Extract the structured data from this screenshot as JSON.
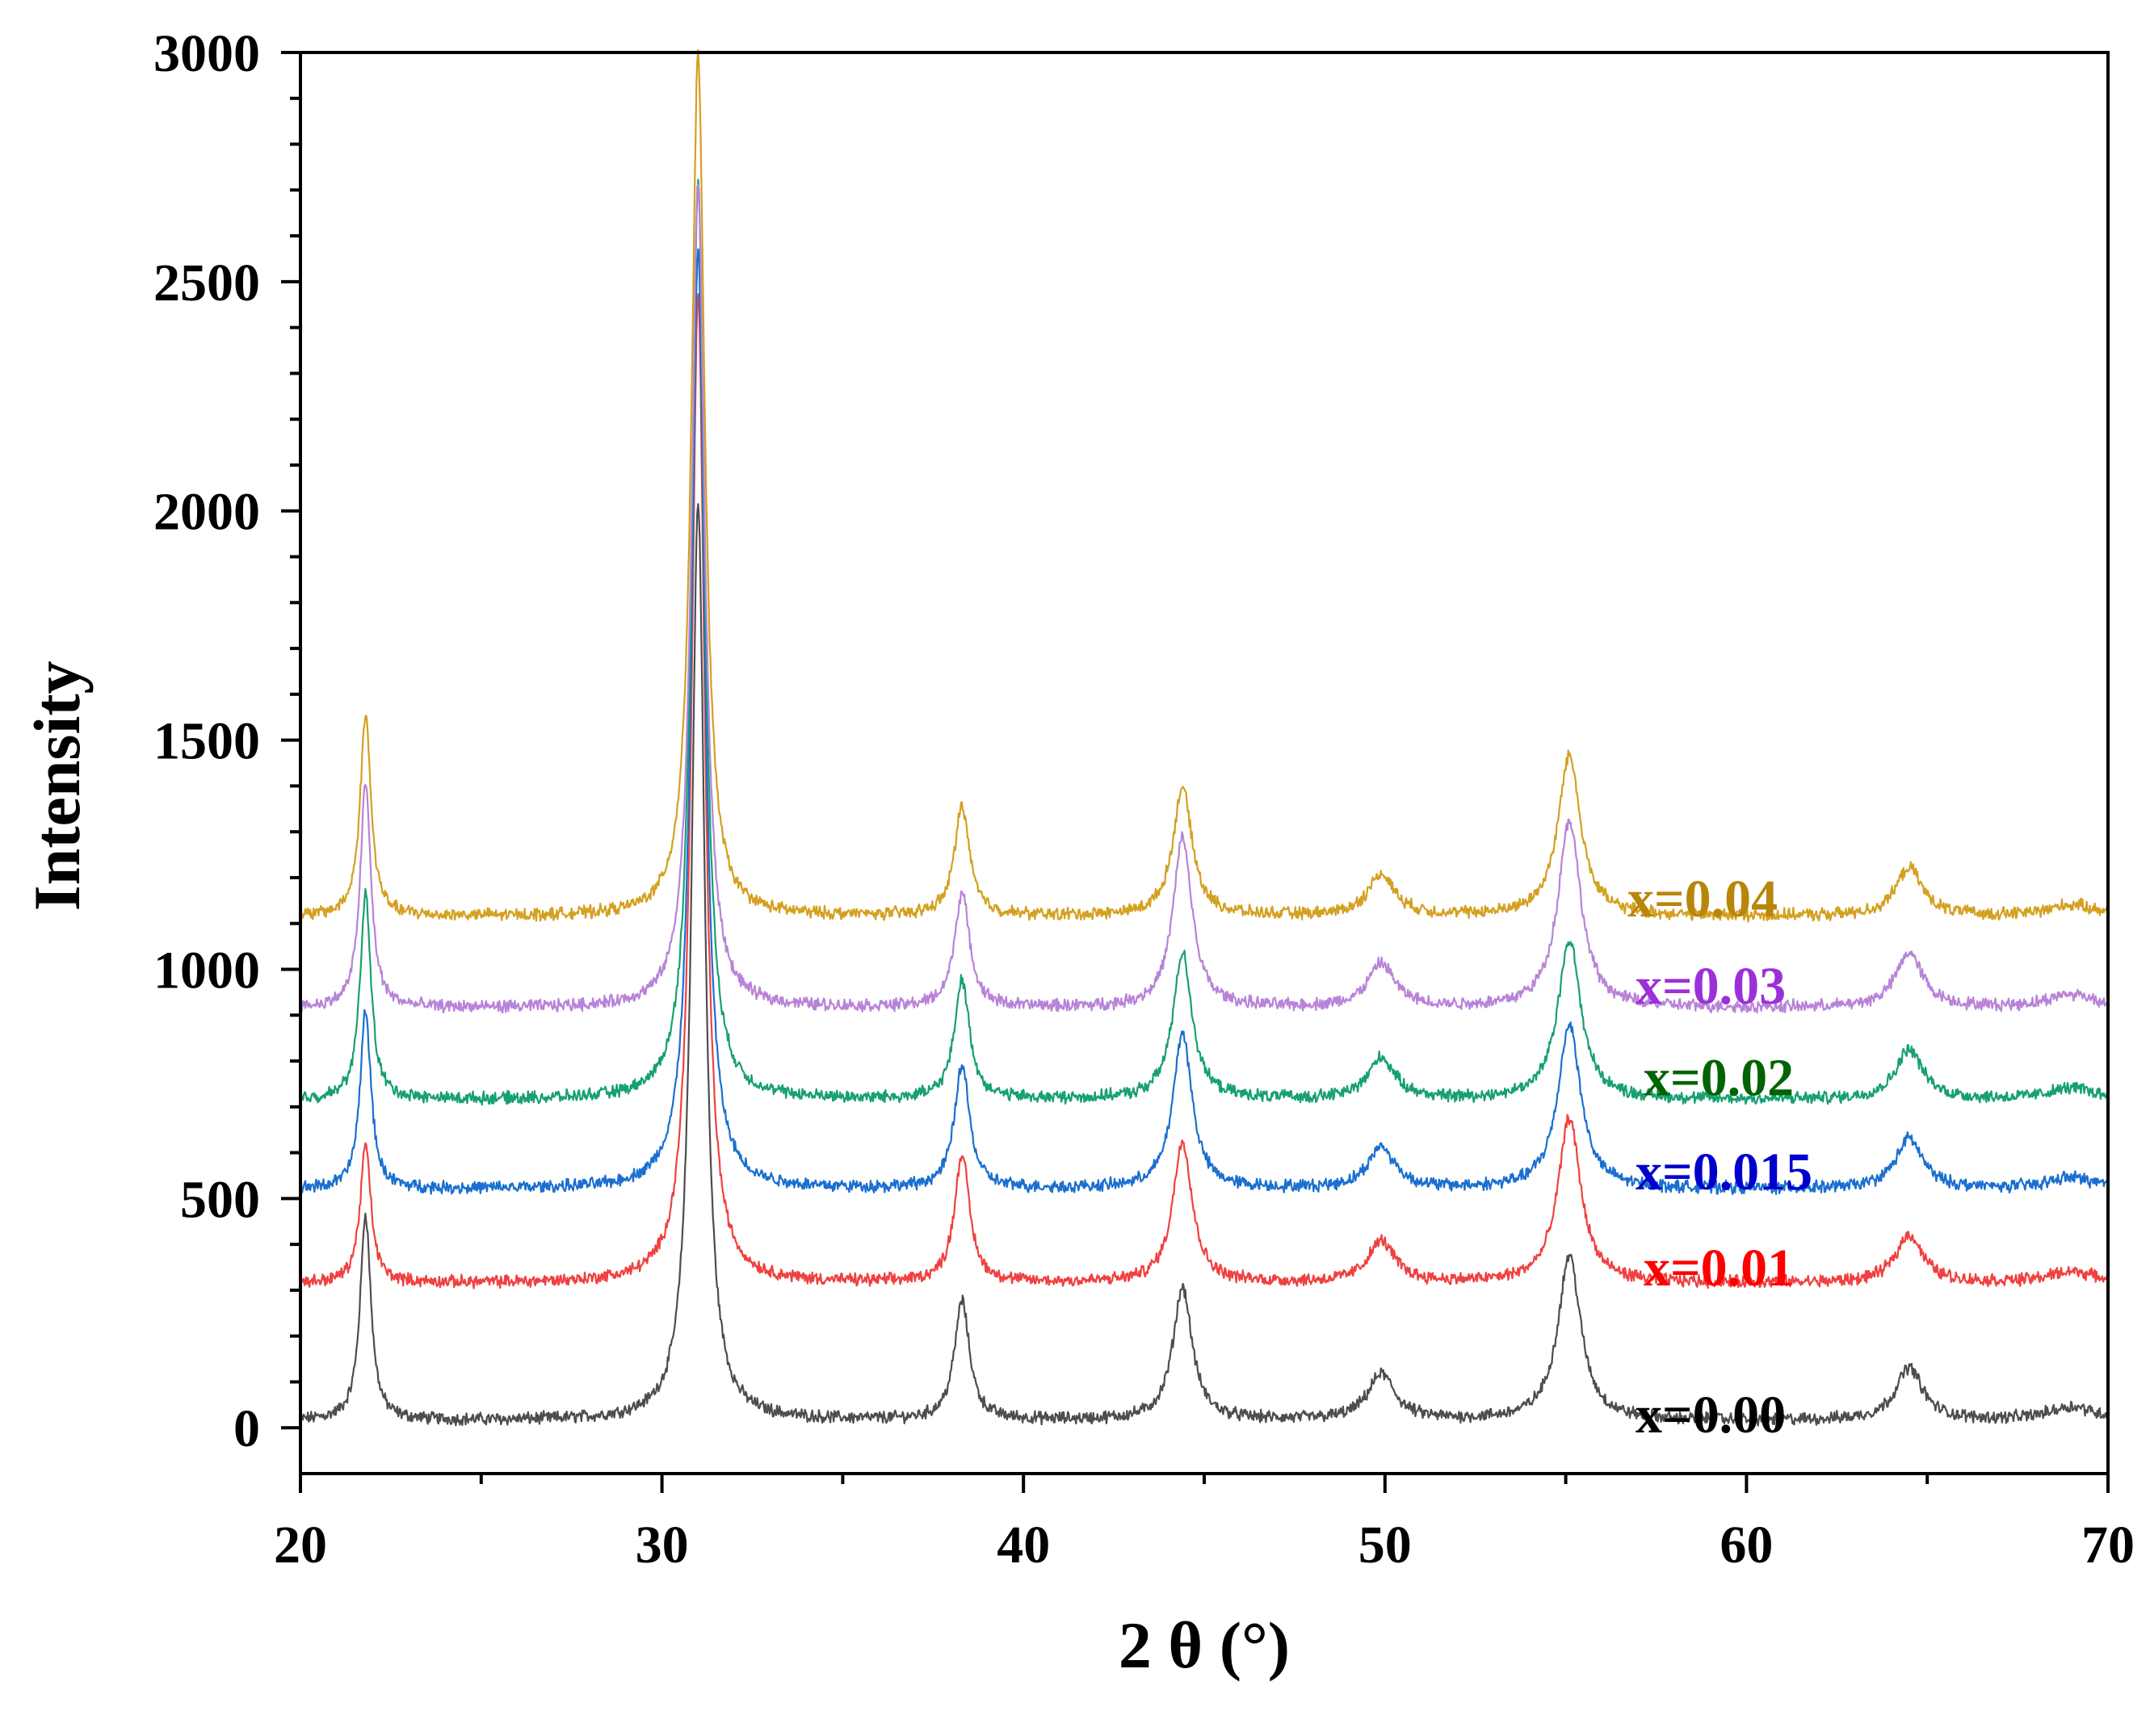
{
  "chart_data": {
    "type": "line",
    "title": "",
    "xlabel": "2 θ (°)",
    "ylabel": "Intensity",
    "xlim": [
      20,
      70
    ],
    "ylim": [
      -100,
      3000
    ],
    "x_ticks": [
      20,
      30,
      40,
      50,
      60,
      70
    ],
    "x_tick_labels": [
      "20",
      "30",
      "40",
      "50",
      "60",
      "70"
    ],
    "x_minor_step": 5,
    "y_ticks": [
      0,
      500,
      1000,
      1500,
      2000,
      2500,
      3000
    ],
    "y_tick_labels": [
      "0",
      "500",
      "1000",
      "1500",
      "2000",
      "2500",
      "3000"
    ],
    "y_minor_step": 100,
    "grid": false,
    "legend": "inline labels on right side",
    "peaks": [
      {
        "x": 21.8,
        "w": 0.18
      },
      {
        "x": 31.0,
        "w": 0.22
      },
      {
        "x": 38.3,
        "w": 0.25
      },
      {
        "x": 44.4,
        "w": 0.32
      },
      {
        "x": 49.9,
        "w": 0.45
      },
      {
        "x": 55.1,
        "w": 0.38
      },
      {
        "x": 64.5,
        "w": 0.45
      },
      {
        "x": 69.0,
        "w": 0.8
      }
    ],
    "series": [
      {
        "name": "x=0.00",
        "label": "x=0.00",
        "color": "#4d4d4d",
        "label_color": "#000000",
        "baseline": 15,
        "peak_heights": [
          450,
          2000,
          260,
          290,
          100,
          360,
          115,
          30
        ]
      },
      {
        "name": "x=0.01",
        "label": "x=0.01",
        "color": "#f04040",
        "label_color": "#ff0000",
        "baseline": 315,
        "peak_heights": [
          300,
          2150,
          280,
          310,
          90,
          360,
          105,
          25
        ]
      },
      {
        "name": "x=0.015",
        "label": "x=0.015",
        "color": "#1a6fd0",
        "label_color": "#0000cc",
        "baseline": 520,
        "peak_heights": [
          390,
          2050,
          270,
          340,
          90,
          360,
          110,
          25
        ]
      },
      {
        "name": "x=0.02",
        "label": "x=0.02",
        "color": "#17a070",
        "label_color": "#006400",
        "baseline": 715,
        "peak_heights": [
          450,
          2000,
          260,
          320,
          90,
          350,
          110,
          25
        ]
      },
      {
        "name": "x=0.03",
        "label": "x=0.03",
        "color": "#b883d8",
        "label_color": "#9b30d9",
        "baseline": 915,
        "peak_heights": [
          490,
          1800,
          250,
          370,
          95,
          410,
          120,
          30
        ]
      },
      {
        "name": "x=0.04",
        "label": "x=0.04",
        "color": "#d4a020",
        "label_color": "#b8860b",
        "baseline": 1115,
        "peak_heights": [
          440,
          1880,
          240,
          280,
          90,
          350,
          105,
          25
        ]
      }
    ]
  }
}
